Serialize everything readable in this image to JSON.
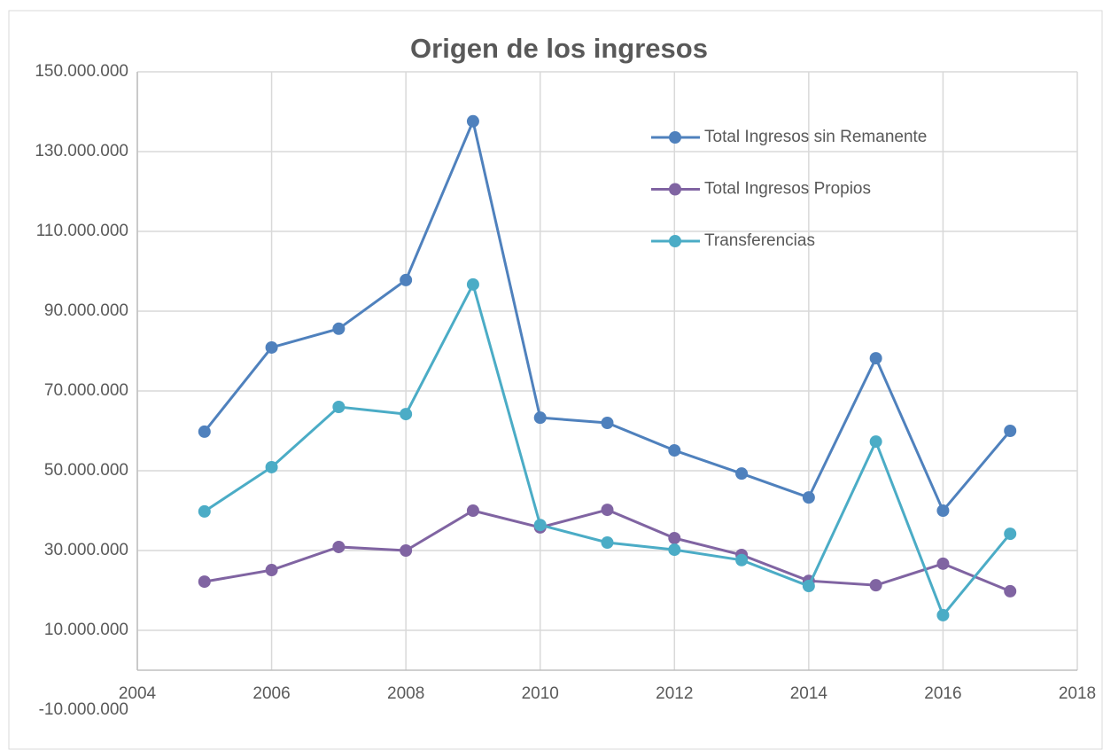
{
  "chart_data": {
    "type": "line",
    "title": "Origen de los ingresos",
    "x": [
      2005,
      2006,
      2007,
      2008,
      2009,
      2010,
      2011,
      2012,
      2013,
      2014,
      2015,
      2016,
      2017
    ],
    "series": [
      {
        "name": "Total Ingresos sin Remanente",
        "color": "#4f81bd",
        "values": [
          59800000,
          80900000,
          85600000,
          97800000,
          137600000,
          63300000,
          62000000,
          55100000,
          49300000,
          43300000,
          78200000,
          40000000,
          60000000
        ]
      },
      {
        "name": "Total Ingresos Propios",
        "color": "#8064a2",
        "values": [
          22200000,
          25100000,
          30900000,
          30000000,
          40000000,
          35800000,
          40200000,
          33100000,
          28900000,
          22400000,
          21300000,
          26700000,
          19800000
        ]
      },
      {
        "name": "Transferencias",
        "color": "#4bacc6",
        "values": [
          39800000,
          50900000,
          66000000,
          64200000,
          96700000,
          36400000,
          32000000,
          30200000,
          27600000,
          21100000,
          57300000,
          13800000,
          34200000
        ]
      }
    ],
    "xlim": [
      2004,
      2018
    ],
    "xticks": [
      2004,
      2006,
      2008,
      2010,
      2012,
      2014,
      2016,
      2018
    ],
    "ylim": [
      -10000000,
      150000000
    ],
    "yticks": [
      {
        "value": -10000000,
        "label": "-10.000.000"
      },
      {
        "value": 10000000,
        "label": "10.000.000"
      },
      {
        "value": 30000000,
        "label": "30.000.000"
      },
      {
        "value": 50000000,
        "label": "50.000.000"
      },
      {
        "value": 70000000,
        "label": "70.000.000"
      },
      {
        "value": 90000000,
        "label": "90.000.000"
      },
      {
        "value": 110000000,
        "label": "110.000.000"
      },
      {
        "value": 130000000,
        "label": "130.000.000"
      },
      {
        "value": 150000000,
        "label": "150.000.000"
      }
    ],
    "x_axis_at": 0,
    "grid": true,
    "legend": "upper right",
    "markers": true
  }
}
